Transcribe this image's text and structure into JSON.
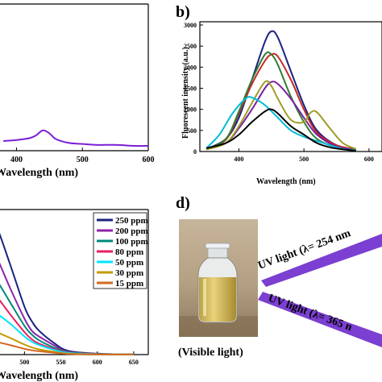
{
  "panels": {
    "b_label": "b)",
    "d_label": "d)"
  },
  "chart_data": [
    {
      "panel": "a",
      "type": "line",
      "xlabel": "Wavelength (nm)",
      "x_ticks": [
        "400",
        "500",
        "600"
      ],
      "xlim": [
        375,
        600
      ],
      "series": [
        {
          "color": "#7b1fd6",
          "x": [
            380,
            400,
            420,
            430,
            440,
            450,
            460,
            480,
            500,
            520,
            550,
            580,
            600
          ],
          "y": [
            0.1,
            0.11,
            0.13,
            0.16,
            0.21,
            0.18,
            0.12,
            0.08,
            0.07,
            0.06,
            0.06,
            0.05,
            0.05
          ]
        }
      ]
    },
    {
      "panel": "b",
      "type": "line",
      "ylabel": "Fluorescent intensity (a.u.)",
      "xlabel": "Wavelength (nm)",
      "y_ticks": [
        "0",
        "500",
        "1000",
        "1500",
        "2000",
        "2500",
        "3000"
      ],
      "x_ticks": [
        "400",
        "500",
        "600"
      ],
      "xlim": [
        340,
        620
      ],
      "ylim": [
        0,
        3000
      ],
      "series": [
        {
          "color": "#1a237e",
          "x": [
            350,
            380,
            400,
            420,
            440,
            450,
            460,
            480,
            500,
            520,
            550,
            580
          ],
          "y": [
            60,
            300,
            800,
            1700,
            2600,
            2850,
            2700,
            1900,
            1100,
            500,
            150,
            50
          ]
        },
        {
          "color": "#c62828",
          "x": [
            350,
            380,
            400,
            420,
            440,
            450,
            460,
            480,
            500,
            520,
            550,
            580
          ],
          "y": [
            60,
            280,
            900,
            1600,
            2150,
            2300,
            2250,
            1700,
            1000,
            450,
            150,
            50
          ]
        },
        {
          "color": "#2e7d32",
          "x": [
            350,
            380,
            400,
            420,
            440,
            450,
            460,
            480,
            500,
            520,
            550,
            580
          ],
          "y": [
            60,
            300,
            950,
            1700,
            2300,
            2300,
            2050,
            1300,
            700,
            300,
            100,
            40
          ]
        },
        {
          "color": "#7b1fa2",
          "x": [
            350,
            380,
            400,
            420,
            440,
            450,
            460,
            480,
            500,
            520,
            550,
            580
          ],
          "y": [
            50,
            200,
            550,
            1000,
            1500,
            1650,
            1600,
            1250,
            800,
            400,
            120,
            40
          ]
        },
        {
          "color": "#9e9d24",
          "x": [
            350,
            380,
            400,
            420,
            440,
            450,
            460,
            480,
            500,
            510,
            520,
            540,
            560,
            580
          ],
          "y": [
            50,
            200,
            600,
            1150,
            1650,
            1550,
            1250,
            750,
            700,
            920,
            930,
            550,
            200,
            60
          ]
        },
        {
          "color": "#00bcd4",
          "x": [
            350,
            370,
            390,
            410,
            420,
            440,
            460,
            480,
            500,
            520,
            540,
            560,
            580
          ],
          "y": [
            80,
            400,
            900,
            1250,
            1280,
            1100,
            800,
            500,
            350,
            250,
            150,
            60,
            30
          ]
        },
        {
          "color": "#000000",
          "x": [
            350,
            380,
            400,
            420,
            440,
            450,
            460,
            480,
            500,
            520,
            540,
            560,
            580
          ],
          "y": [
            80,
            200,
            400,
            700,
            950,
            1000,
            900,
            600,
            400,
            200,
            100,
            50,
            20
          ]
        }
      ]
    },
    {
      "panel": "c",
      "type": "line",
      "xlabel": "Wavelength (nm)",
      "x_ticks": [
        "450",
        "500",
        "550",
        "600",
        "650"
      ],
      "xlim": [
        400,
        670
      ],
      "ylim": [
        0,
        3000
      ],
      "legend": "top-right",
      "series": [
        {
          "name": "250 ppm",
          "color": "#1a237e",
          "x": [
            400,
            420,
            440,
            450,
            460,
            480,
            500,
            510,
            520,
            540,
            560,
            600,
            650
          ],
          "y": [
            600,
            1600,
            2700,
            2900,
            2750,
            1900,
            1000,
            700,
            500,
            250,
            80,
            20,
            5
          ]
        },
        {
          "name": "200 ppm",
          "color": "#8e24aa",
          "x": [
            400,
            420,
            440,
            450,
            460,
            480,
            500,
            510,
            520,
            540,
            560,
            600,
            650
          ],
          "y": [
            400,
            1200,
            2050,
            2300,
            2100,
            1400,
            750,
            500,
            380,
            200,
            60,
            15,
            5
          ]
        },
        {
          "name": "100 ppm",
          "color": "#00897b",
          "x": [
            400,
            420,
            440,
            450,
            460,
            480,
            500,
            510,
            520,
            540,
            560,
            600,
            650
          ],
          "y": [
            300,
            900,
            1550,
            1750,
            1600,
            1100,
            600,
            420,
            300,
            150,
            50,
            12,
            5
          ]
        },
        {
          "name": "80 ppm",
          "color": "#e91e63",
          "x": [
            400,
            420,
            440,
            450,
            460,
            480,
            500,
            510,
            520,
            540,
            560,
            600,
            650
          ],
          "y": [
            220,
            700,
            1230,
            1370,
            1250,
            850,
            470,
            320,
            230,
            120,
            40,
            10,
            4
          ]
        },
        {
          "name": "50 ppm",
          "color": "#00e5ff",
          "x": [
            400,
            420,
            440,
            450,
            460,
            480,
            500,
            510,
            520,
            540,
            560,
            600,
            650
          ],
          "y": [
            180,
            520,
            860,
            950,
            880,
            650,
            380,
            270,
            200,
            100,
            35,
            8,
            3
          ]
        },
        {
          "name": "30 ppm",
          "color": "#c49a00",
          "x": [
            400,
            420,
            440,
            450,
            460,
            480,
            500,
            510,
            520,
            540,
            560,
            600,
            650
          ],
          "y": [
            100,
            280,
            470,
            520,
            480,
            350,
            210,
            150,
            110,
            60,
            20,
            5,
            2
          ]
        },
        {
          "name": "15 ppm",
          "color": "#d2691e",
          "x": [
            400,
            420,
            440,
            450,
            460,
            480,
            500,
            510,
            520,
            540,
            560,
            600,
            650
          ],
          "y": [
            60,
            160,
            260,
            290,
            270,
            200,
            120,
            90,
            70,
            40,
            15,
            3,
            1
          ]
        }
      ]
    }
  ],
  "panel_d": {
    "uv1_text": "UV light (λ= 254 nm",
    "uv2_text": "UV light (λ= 365 n",
    "caption": "(Visible light)",
    "arrow_color": "#7b3fd1"
  }
}
